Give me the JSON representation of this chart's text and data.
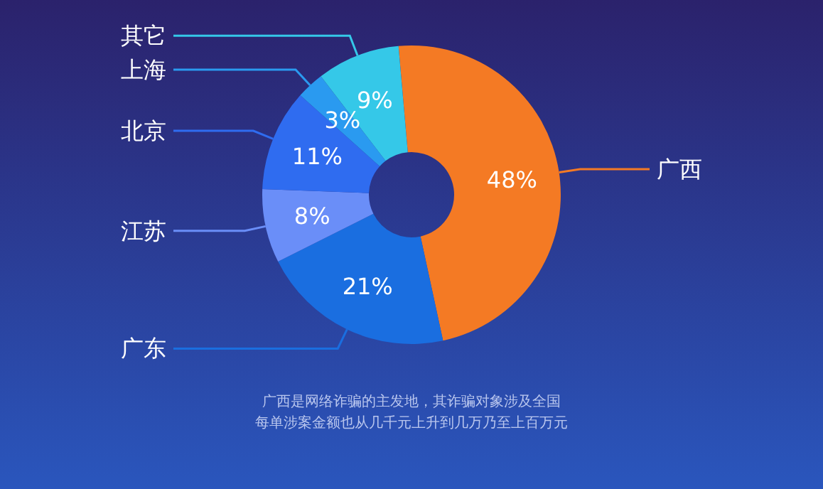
{
  "chart_data": {
    "type": "donut",
    "categories": [
      "广西",
      "广东",
      "江苏",
      "北京",
      "上海",
      "其它"
    ],
    "values": [
      48,
      21,
      8,
      11,
      3,
      9
    ],
    "value_labels": [
      "48%",
      "21%",
      "8%",
      "11%",
      "3%",
      "9%"
    ],
    "colors": [
      "#f47a24",
      "#1a6ee0",
      "#6a8ef8",
      "#2f6cf0",
      "#2a9af0",
      "#35c8e8"
    ],
    "annotations": [
      "广西是网络诈骗的主发地，其诈骗对象涉及全国",
      "每单涉案金额也从几千元上升到几万乃至上百万元"
    ],
    "legend": false
  }
}
